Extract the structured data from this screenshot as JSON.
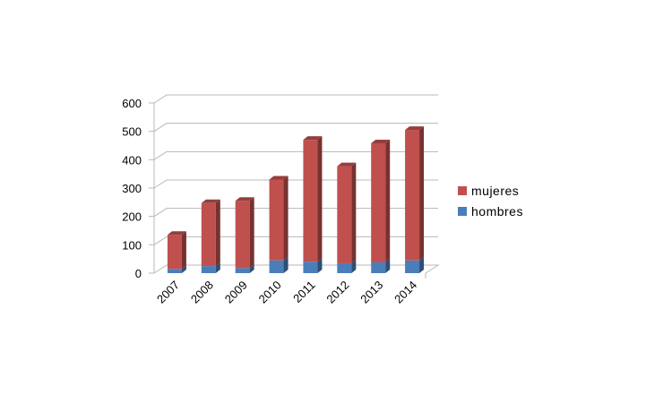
{
  "chart_data": {
    "type": "bar",
    "stacked": true,
    "three_d": true,
    "title": "",
    "xlabel": "",
    "ylabel": "",
    "categories": [
      "2007",
      "2008",
      "2009",
      "2010",
      "2011",
      "2012",
      "2013",
      "2014"
    ],
    "series": [
      {
        "name": "hombres",
        "color": "#4a7ebb",
        "values": [
          15,
          25,
          18,
          45,
          40,
          35,
          38,
          45
        ]
      },
      {
        "name": "mujeres",
        "color": "#c0504d",
        "values": [
          120,
          222,
          237,
          285,
          430,
          342,
          420,
          460
        ]
      }
    ],
    "ylim": [
      0,
      600
    ],
    "yticks": [
      "0",
      "100",
      "200",
      "300",
      "400",
      "500",
      "600"
    ],
    "grid": true,
    "legend_position": "right"
  }
}
